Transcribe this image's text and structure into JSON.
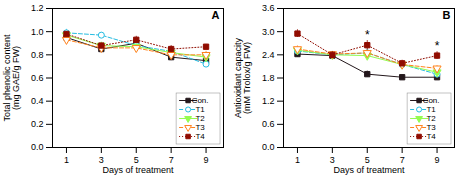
{
  "chart_data": [
    {
      "type": "line",
      "title": "A",
      "xlabel": "Days of treatment",
      "ylabel": "Total phenolic content\n(mg GAE/g FW)",
      "x": [
        1,
        3,
        5,
        7,
        9
      ],
      "xlim": [
        0.2,
        10.0
      ],
      "xticks": [
        1,
        3,
        5,
        7,
        9
      ],
      "ylim": [
        0.0,
        1.2
      ],
      "yticks": [
        {
          "value": 0.0,
          "label": "0.0"
        },
        0.2,
        0.4,
        0.6,
        0.8,
        {
          "value": 1.0,
          "label": "1.0"
        },
        1.2
      ],
      "grid": false,
      "legend": "lower right",
      "series": [
        {
          "name": "Con.",
          "values": [
            0.95,
            0.85,
            0.9,
            0.78,
            0.75
          ],
          "yerr": [
            0.04,
            0.03,
            0.04,
            0.03,
            0.03
          ],
          "marker": "square",
          "line_style": "solid"
        },
        {
          "name": "T1",
          "values": [
            0.99,
            0.97,
            0.88,
            0.83,
            0.72
          ],
          "yerr": [
            0.03,
            0.02,
            0.03,
            0.03,
            0.02
          ],
          "marker": "open_circle",
          "line_style": "dashed"
        },
        {
          "name": "T2",
          "values": [
            0.97,
            0.88,
            0.87,
            0.82,
            0.78
          ],
          "yerr": [
            0.02,
            0.03,
            0.03,
            0.02,
            0.02
          ],
          "marker": "triangle_down",
          "line_style": "solid"
        },
        {
          "name": "T3",
          "values": [
            0.93,
            0.86,
            0.86,
            0.8,
            0.8
          ],
          "yerr": [
            0.03,
            0.02,
            0.02,
            0.02,
            0.03
          ],
          "marker": "open_triangle_down",
          "line_style": "dashed"
        },
        {
          "name": "T4",
          "values": [
            0.98,
            0.88,
            0.93,
            0.85,
            0.87
          ],
          "yerr": [
            0.02,
            0.02,
            0.03,
            0.03,
            0.02
          ],
          "marker": "square",
          "line_style": "dotted"
        }
      ]
    },
    {
      "type": "line",
      "title": "B",
      "xlabel": "Days of treatment",
      "ylabel": "Antioxidant capacity\n(mM Trolox/g FW)",
      "x": [
        1,
        3,
        5,
        7,
        9
      ],
      "xlim": [
        0.2,
        10.0
      ],
      "xticks": [
        1,
        3,
        5,
        7,
        9
      ],
      "ylim": [
        0.0,
        3.6
      ],
      "yticks": [
        {
          "value": 0.0,
          "label": "0.0"
        },
        0.6,
        1.2,
        1.8,
        2.4,
        {
          "value": 3.0,
          "label": "3.0"
        },
        3.6
      ],
      "grid": false,
      "legend": "lower right",
      "annotations": [
        {
          "x": 5,
          "y": 2.82,
          "text": "*"
        },
        {
          "x": 9,
          "y": 2.52,
          "text": "*"
        }
      ],
      "series": [
        {
          "name": "Con.",
          "values": [
            2.42,
            2.38,
            1.9,
            1.82,
            1.82
          ],
          "yerr": [
            0.08,
            0.07,
            0.08,
            0.06,
            0.06
          ],
          "marker": "square",
          "line_style": "solid"
        },
        {
          "name": "T1",
          "values": [
            2.5,
            2.4,
            2.45,
            2.15,
            1.9
          ],
          "yerr": [
            0.07,
            0.07,
            0.1,
            0.08,
            0.07
          ],
          "marker": "open_circle",
          "line_style": "dashed"
        },
        {
          "name": "T2",
          "values": [
            2.52,
            2.4,
            2.38,
            2.15,
            1.95
          ],
          "yerr": [
            0.07,
            0.07,
            0.08,
            0.07,
            0.07
          ],
          "marker": "triangle_down",
          "line_style": "solid"
        },
        {
          "name": "T3",
          "values": [
            2.55,
            2.42,
            2.45,
            2.15,
            2.05
          ],
          "yerr": [
            0.08,
            0.07,
            0.08,
            0.07,
            0.07
          ],
          "marker": "open_triangle_down",
          "line_style": "dashed"
        },
        {
          "name": "T4",
          "values": [
            2.95,
            2.4,
            2.65,
            2.18,
            2.38
          ],
          "yerr": [
            0.1,
            0.08,
            0.12,
            0.08,
            0.1
          ],
          "marker": "square",
          "line_style": "dotted"
        }
      ]
    }
  ]
}
